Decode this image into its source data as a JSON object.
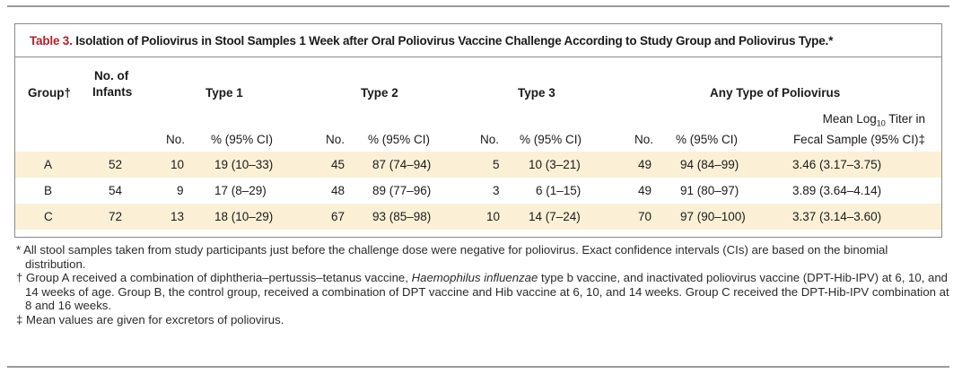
{
  "table": {
    "label": "Table 3.",
    "title": "Isolation of Poliovirus in Stool Samples 1 Week after Oral Poliovirus Vaccine Challenge According to Study Group and Poliovirus Type.*",
    "headers": {
      "group": "Group†",
      "infants_line1": "No. of",
      "infants_line2": "Infants",
      "type1": "Type 1",
      "type2": "Type 2",
      "type3": "Type 3",
      "any": "Any Type of Poliovirus",
      "no": "No.",
      "pct": "% (95% CI)",
      "titer_line1_pre": "Mean Log",
      "titer_line1_sub": "10",
      "titer_line1_post": " Titer in",
      "titer_line2": "Fecal Sample (95% CI)‡"
    },
    "rows": [
      {
        "group": "A",
        "infants": "52",
        "t1_no": "10",
        "t1_pct": "19 (10–33)",
        "t2_no": "45",
        "t2_pct": "87 (74–94)",
        "t3_no": "5",
        "t3_pct": "10 (3–21)",
        "any_no": "49",
        "any_pct": "94 (84–99)",
        "titer": "3.46 (3.17–3.75)"
      },
      {
        "group": "B",
        "infants": "54",
        "t1_no": "9",
        "t1_pct": "17 (8–29)",
        "t2_no": "48",
        "t2_pct": "89 (77–96)",
        "t3_no": "3",
        "t3_pct": "6 (1–15)",
        "any_no": "49",
        "any_pct": "91 (80–97)",
        "titer": "3.89 (3.64–4.14)"
      },
      {
        "group": "C",
        "infants": "72",
        "t1_no": "13",
        "t1_pct": "18 (10–29)",
        "t2_no": "67",
        "t2_pct": "93 (85–98)",
        "t3_no": "10",
        "t3_pct": "14 (7–24)",
        "any_no": "70",
        "any_pct": "97 (90–100)",
        "titer": "3.37 (3.14–3.60)"
      }
    ]
  },
  "footnotes": {
    "star_pre": "* All stool samples taken from study participants just before the challenge dose were negative for poliovirus. Exact confidence intervals (CIs) are based on the binomial distribution.",
    "dagger_pre": "† Group A received a combination of diphtheria–pertussis–tetanus vaccine, ",
    "dagger_italic": "Haemophilus influenzae",
    "dagger_post": " type b vaccine, and inactivated poliovirus vaccine (DPT-Hib-IPV) at 6, 10, and 14 weeks of age. Group B, the control group, received a combination of DPT vaccine and Hib vaccine at 6, 10, and 14 weeks. Group C received the DPT-Hib-IPV combination at 8 and 16 weeks.",
    "ddagger": "‡ Mean values are given for excretors of poliovirus."
  },
  "colors": {
    "label": "#b0222b",
    "shade": "#fbf0d6"
  }
}
